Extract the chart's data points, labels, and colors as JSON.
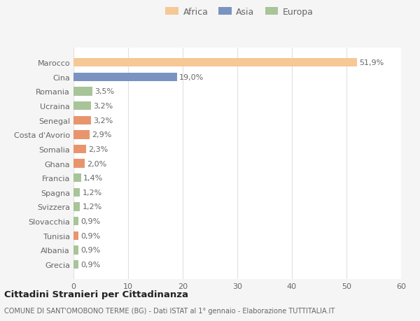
{
  "categories": [
    "Grecia",
    "Albania",
    "Tunisia",
    "Slovacchia",
    "Svizzera",
    "Spagna",
    "Francia",
    "Ghana",
    "Somalia",
    "Costa d'Avorio",
    "Senegal",
    "Ucraina",
    "Romania",
    "Cina",
    "Marocco"
  ],
  "values": [
    0.9,
    0.9,
    0.9,
    0.9,
    1.2,
    1.2,
    1.4,
    2.0,
    2.3,
    2.9,
    3.2,
    3.2,
    3.5,
    19.0,
    51.9
  ],
  "labels": [
    "0,9%",
    "0,9%",
    "0,9%",
    "0,9%",
    "1,2%",
    "1,2%",
    "1,4%",
    "2,0%",
    "2,3%",
    "2,9%",
    "3,2%",
    "3,2%",
    "3,5%",
    "19,0%",
    "51,9%"
  ],
  "colors": [
    "#a8c499",
    "#a8c499",
    "#e8956e",
    "#a8c499",
    "#a8c499",
    "#a8c499",
    "#a8c499",
    "#e8956e",
    "#e8956e",
    "#e8956e",
    "#e8956e",
    "#a8c499",
    "#a8c499",
    "#7a93c0",
    "#f5c896"
  ],
  "legend_labels": [
    "Africa",
    "Asia",
    "Europa"
  ],
  "legend_colors": [
    "#f5c896",
    "#7a93c0",
    "#a8c499"
  ],
  "title": "Cittadini Stranieri per Cittadinanza",
  "subtitle": "COMUNE DI SANT'OMOBONO TERME (BG) - Dati ISTAT al 1° gennaio - Elaborazione TUTTITALIA.IT",
  "xlim": [
    0,
    60
  ],
  "xticks": [
    0,
    10,
    20,
    30,
    40,
    50,
    60
  ],
  "bg_color": "#f5f5f5",
  "plot_bg_color": "#ffffff",
  "grid_color": "#e0e0e0",
  "text_color": "#666666",
  "title_color": "#222222",
  "label_fontsize": 8,
  "tick_fontsize": 8,
  "legend_fontsize": 9
}
